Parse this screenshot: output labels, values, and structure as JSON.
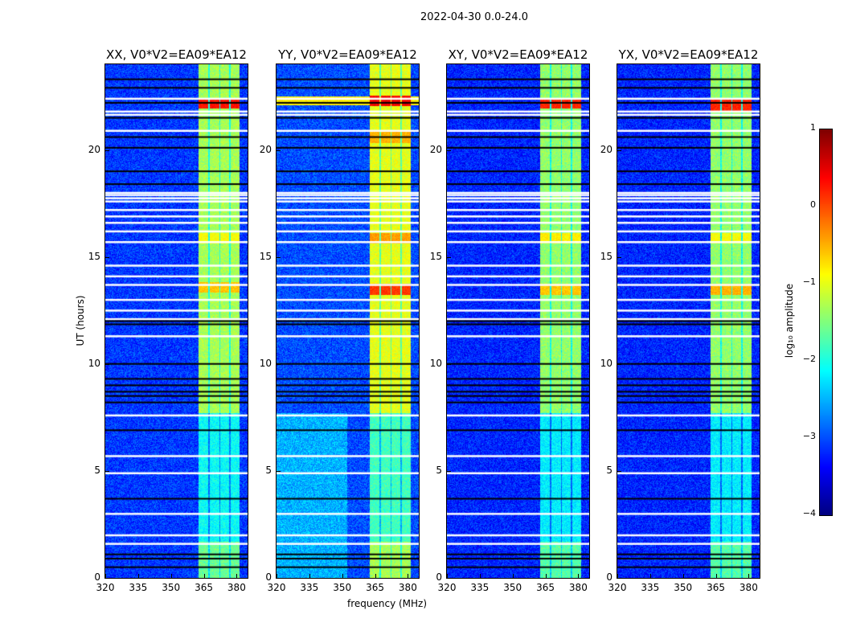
{
  "suptitle": "2022-04-30 0.0-24.0",
  "chart_data": [
    {
      "type": "heatmap",
      "title": "XX, V0*V2=EA09*EA12",
      "band_level": -1.3,
      "band_peak_rows": [
        [
          22.2,
          0.3
        ],
        [
          13.6,
          -0.6
        ],
        [
          15.9,
          -0.9
        ]
      ],
      "background_level": -3.1
    },
    {
      "type": "heatmap",
      "title": "YY, V0*V2=EA09*EA12",
      "band_level": -1.0,
      "band_peak_rows": [
        [
          22.3,
          0.4
        ],
        [
          13.5,
          0.1
        ],
        [
          15.9,
          -0.4
        ],
        [
          20.6,
          -0.5
        ]
      ],
      "background_level": -3.0,
      "full_row_peaks": [
        [
          22.3,
          -0.8
        ]
      ]
    },
    {
      "type": "heatmap",
      "title": "XY, V0*V2=EA09*EA12",
      "band_level": -1.4,
      "band_peak_rows": [
        [
          22.2,
          0.2
        ],
        [
          13.5,
          -0.6
        ],
        [
          15.9,
          -0.8
        ]
      ],
      "background_level": -3.2
    },
    {
      "type": "heatmap",
      "title": "YX, V0*V2=EA09*EA12",
      "band_level": -1.4,
      "band_peak_rows": [
        [
          22.1,
          0.2
        ],
        [
          13.5,
          -0.5
        ],
        [
          15.9,
          -0.9
        ]
      ],
      "background_level": -3.2
    }
  ],
  "shared": {
    "xlabel": "frequency (MHz)",
    "ylabel": "UT (hours)",
    "xlim": [
      320,
      385
    ],
    "ylim": [
      0,
      24
    ],
    "xticks": [
      "320",
      "335",
      "350",
      "365",
      "380"
    ],
    "xtick_values": [
      320,
      335,
      350,
      365,
      380
    ],
    "yticks": [
      "0",
      "5",
      "10",
      "15",
      "20"
    ],
    "ytick_values": [
      0,
      5,
      10,
      15,
      20
    ],
    "band_sub_ranges_mhz": [
      [
        362.5,
        367
      ],
      [
        367.5,
        372
      ],
      [
        372.5,
        376.5
      ],
      [
        377,
        381
      ]
    ],
    "flagged_white_rows_ut": [
      22.4,
      21.8,
      21.65,
      20.9,
      18.0,
      17.9,
      17.75,
      17.6,
      17.2,
      16.9,
      16.6,
      16.2,
      15.7,
      14.6,
      14.1,
      13.7,
      13.0,
      12.5,
      12.1,
      11.3,
      7.6,
      5.7,
      4.9,
      3.0,
      2.0,
      1.6
    ],
    "black_rows_ut": [
      23.3,
      22.9,
      22.2,
      21.5,
      20.6,
      20.1,
      19.0,
      18.4,
      12.0,
      11.85,
      10.0,
      9.3,
      9.0,
      8.7,
      8.5,
      8.2,
      6.9,
      3.7,
      1.1,
      0.9,
      0.5
    ]
  },
  "colorbar": {
    "label": "log₁₀ amplitude",
    "range": [
      -4,
      1
    ],
    "ticks": [
      "−4",
      "−3",
      "−2",
      "−1",
      "0",
      "1"
    ],
    "tick_values": [
      -4,
      -3,
      -2,
      -1,
      0,
      1
    ],
    "colormap": "jet"
  }
}
